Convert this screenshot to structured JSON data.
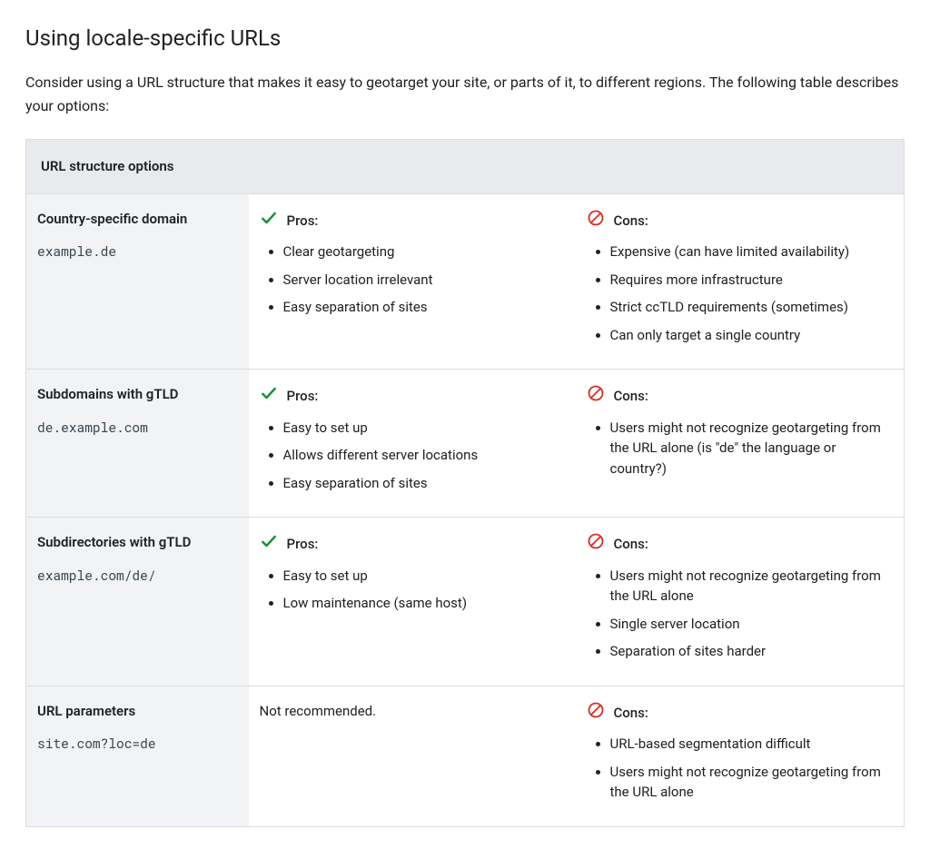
{
  "page": {
    "title": "Using locale-specific URLs",
    "intro": "Consider using a URL structure that makes it easy to geotarget your site, or parts of it, to different regions. The following table describes your options:"
  },
  "table": {
    "header": "URL structure options",
    "pros_label": "Pros:",
    "cons_label": "Cons:",
    "colors": {
      "check": "#1e8e3e",
      "no": "#d93025",
      "header_bg": "#e8eaed",
      "label_bg": "#f1f3f4",
      "border": "#dadce0"
    },
    "rows": [
      {
        "name": "Country-specific domain",
        "example": "example.de",
        "pros": [
          "Clear geotargeting",
          "Server location irrelevant",
          "Easy separation of sites"
        ],
        "cons": [
          "Expensive (can have limited availability)",
          "Requires more infrastructure",
          "Strict ccTLD requirements (sometimes)",
          "Can only target a single country"
        ]
      },
      {
        "name": "Subdomains with gTLD",
        "example": "de.example.com",
        "pros": [
          "Easy to set up",
          "Allows different server locations",
          "Easy separation of sites"
        ],
        "cons": [
          "Users might not recognize geotargeting from the URL alone (is \"de\" the language or country?)"
        ]
      },
      {
        "name": "Subdirectories with gTLD",
        "example": "example.com/de/",
        "pros": [
          "Easy to set up",
          "Low maintenance (same host)"
        ],
        "cons": [
          "Users might not recognize geotargeting from the URL alone",
          "Single server location",
          "Separation of sites harder"
        ]
      },
      {
        "name": "URL parameters",
        "example": "site.com?loc=de",
        "pros_text": "Not recommended.",
        "cons": [
          "URL-based segmentation difficult",
          "Users might not recognize geotargeting from the URL alone"
        ]
      }
    ]
  }
}
